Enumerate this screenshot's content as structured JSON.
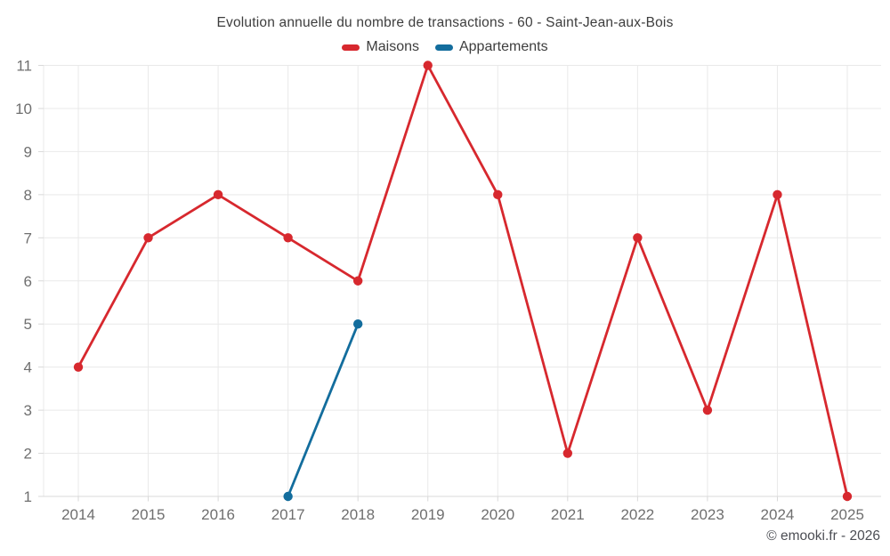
{
  "chart": {
    "title": "Evolution annuelle du nombre de transactions - 60 - Saint-Jean-aux-Bois",
    "footer": "© emooki.fr - 2026"
  },
  "colors": {
    "maisons_red": "#d7282e",
    "appartements_blue": "#136d9d",
    "gridline": "#e9e9e9",
    "axis_line": "#d9d9d9",
    "tick_label": "#6f6f6f",
    "title_text": "#3d3d3d",
    "footer_text": "#4c4e54"
  },
  "chart_data": {
    "type": "line",
    "x": [
      "2014",
      "2015",
      "2016",
      "2017",
      "2018",
      "2019",
      "2020",
      "2021",
      "2022",
      "2023",
      "2024",
      "2025"
    ],
    "series": [
      {
        "name": "Maisons",
        "color": "#d7282e",
        "values": [
          4,
          7,
          8,
          7,
          6,
          11,
          8,
          2,
          7,
          3,
          8,
          1
        ]
      },
      {
        "name": "Appartements",
        "color": "#136d9d",
        "values": [
          null,
          null,
          null,
          1,
          5,
          null,
          null,
          null,
          null,
          null,
          null,
          null
        ]
      }
    ],
    "title": "Evolution annuelle du nombre de transactions - 60 - Saint-Jean-aux-Bois",
    "xlabel": "",
    "ylabel": "",
    "ylim": [
      1,
      11
    ],
    "yticks": [
      1,
      2,
      3,
      4,
      5,
      6,
      7,
      8,
      9,
      10,
      11
    ],
    "grid": true,
    "legend_position": "top"
  }
}
